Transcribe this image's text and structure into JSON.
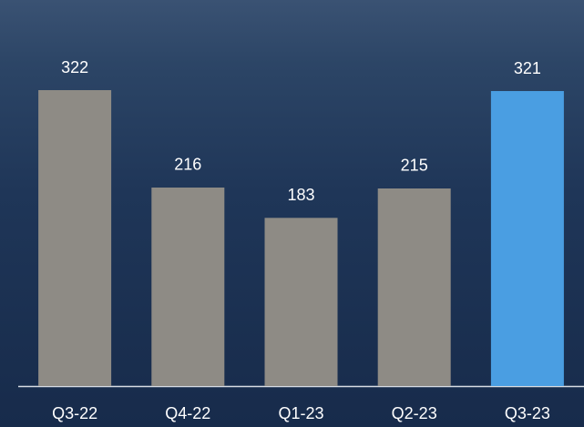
{
  "chart_data": {
    "type": "bar",
    "categories": [
      "Q3-22",
      "Q4-22",
      "Q1-23",
      "Q2-23",
      "Q3-23"
    ],
    "values": [
      322,
      216,
      183,
      215,
      321
    ],
    "colors": [
      "#8e8b85",
      "#8e8b85",
      "#8e8b85",
      "#8e8b85",
      "#4a9ee2"
    ]
  }
}
